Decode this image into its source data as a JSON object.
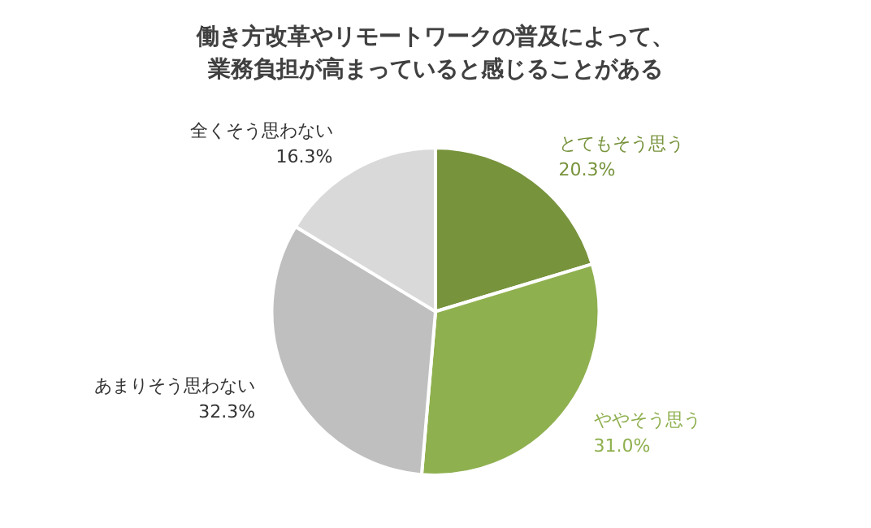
{
  "chart_data": {
    "type": "pie",
    "title": "働き方改革やリモートワークの普及によって、業務負担が高まっていると感じることがある",
    "categories": [
      "とてもそう思う",
      "ややそう思う",
      "あまりそう思わない",
      "全くそう思わない"
    ],
    "values": [
      20.3,
      31.0,
      32.3,
      16.3
    ],
    "value_labels": [
      "20.3%",
      "31.0%",
      "32.3%",
      "16.3%"
    ],
    "colors": [
      "#77933c",
      "#8fb04f",
      "#bfbfbf",
      "#d9d9d9"
    ],
    "legend": false
  }
}
